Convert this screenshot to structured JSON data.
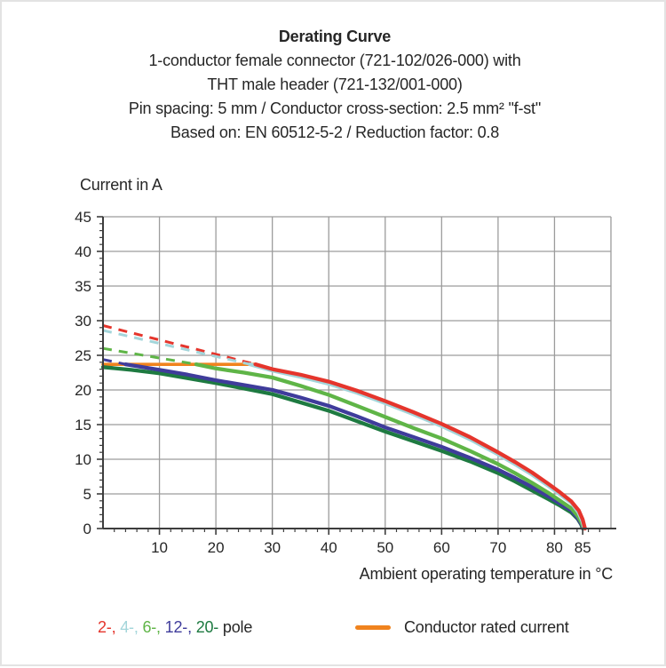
{
  "header": {
    "title": "Derating Curve",
    "subtitle_lines": [
      "1-conductor female connector (721-102/026-000) with",
      "THT male header (721-132/001-000)",
      "Pin spacing: 5 mm / Conductor cross-section: 2.5 mm² \"f-st\"",
      "Based on: EN 60512-5-2 / Reduction factor: 0.8"
    ]
  },
  "chart_data": {
    "type": "line",
    "title": "Derating Curve",
    "xlabel": "Ambient operating temperature in °C",
    "ylabel": "Current in A",
    "xlim": [
      0,
      90
    ],
    "ylim": [
      0,
      45
    ],
    "grid": true,
    "colors": {
      "grid": "#9c9c9c",
      "axis": "#3d3d3d",
      "text": "#262626"
    },
    "axes": {
      "x": {
        "major_ticks": [
          10,
          20,
          30,
          40,
          50,
          60,
          70,
          80,
          85
        ],
        "gridlines": [
          10,
          20,
          30,
          40,
          50,
          60,
          70,
          80,
          90
        ],
        "minor_step": 2
      },
      "y": {
        "major_ticks": [
          0,
          5,
          10,
          15,
          20,
          25,
          30,
          35,
          40,
          45
        ],
        "gridlines": [
          5,
          10,
          15,
          20,
          25,
          30,
          35,
          40,
          45
        ],
        "minor_step": 1
      }
    },
    "rated_current": {
      "name": "Conductor rated current",
      "color": "#f0831e",
      "value": 23.7,
      "t_range": [
        0,
        27
      ]
    },
    "series": [
      {
        "name": "2-pole",
        "color": "#e5352c",
        "dashed": [
          [
            0,
            29.3
          ],
          [
            27,
            23.7
          ]
        ],
        "solid": [
          [
            27,
            23.7
          ],
          [
            30,
            23.0
          ],
          [
            35,
            22.2
          ],
          [
            40,
            21.2
          ],
          [
            45,
            19.9
          ],
          [
            50,
            18.4
          ],
          [
            55,
            16.8
          ],
          [
            60,
            15.1
          ],
          [
            65,
            13.2
          ],
          [
            70,
            11.0
          ],
          [
            73,
            9.6
          ],
          [
            76,
            8.1
          ],
          [
            79,
            6.4
          ],
          [
            81,
            5.2
          ],
          [
            83,
            3.9
          ],
          [
            84.3,
            2.6
          ],
          [
            85,
            1.3
          ],
          [
            85.4,
            0
          ]
        ]
      },
      {
        "name": "4-pole",
        "color": "#a3d5da",
        "dashed": [
          [
            0,
            28.6
          ],
          [
            26,
            23.7
          ]
        ],
        "solid": [
          [
            26,
            23.7
          ],
          [
            30,
            22.8
          ],
          [
            35,
            21.9
          ],
          [
            40,
            20.9
          ],
          [
            45,
            19.6
          ],
          [
            50,
            18.1
          ],
          [
            55,
            16.5
          ],
          [
            60,
            14.8
          ],
          [
            65,
            12.9
          ],
          [
            70,
            10.7
          ],
          [
            73,
            9.3
          ],
          [
            76,
            7.8
          ],
          [
            79,
            6.1
          ],
          [
            81,
            4.9
          ],
          [
            83,
            3.7
          ],
          [
            84.2,
            2.4
          ],
          [
            84.9,
            1.1
          ],
          [
            85.3,
            0
          ]
        ]
      },
      {
        "name": "6-pole",
        "color": "#5fb547",
        "dashed": [
          [
            0,
            26.0
          ],
          [
            16.5,
            23.7
          ]
        ],
        "solid": [
          [
            16.5,
            23.7
          ],
          [
            20,
            23.1
          ],
          [
            25,
            22.5
          ],
          [
            30,
            21.8
          ],
          [
            35,
            20.6
          ],
          [
            40,
            19.3
          ],
          [
            45,
            17.7
          ],
          [
            50,
            16.1
          ],
          [
            55,
            14.5
          ],
          [
            60,
            13.0
          ],
          [
            65,
            11.2
          ],
          [
            70,
            9.3
          ],
          [
            73,
            8.0
          ],
          [
            76,
            6.6
          ],
          [
            79,
            5.1
          ],
          [
            81,
            4.0
          ],
          [
            83,
            2.9
          ],
          [
            84.2,
            1.7
          ],
          [
            84.8,
            0.8
          ],
          [
            85.2,
            0
          ]
        ]
      },
      {
        "name": "12-pole",
        "color": "#3f3c9b",
        "dashed": [
          [
            0,
            24.4
          ],
          [
            4,
            23.7
          ]
        ],
        "solid": [
          [
            4,
            23.7
          ],
          [
            10,
            22.9
          ],
          [
            15,
            22.2
          ],
          [
            20,
            21.4
          ],
          [
            25,
            20.7
          ],
          [
            30,
            20.0
          ],
          [
            35,
            18.9
          ],
          [
            40,
            17.7
          ],
          [
            45,
            16.2
          ],
          [
            50,
            14.6
          ],
          [
            55,
            13.2
          ],
          [
            60,
            11.8
          ],
          [
            65,
            10.2
          ],
          [
            70,
            8.5
          ],
          [
            73,
            7.3
          ],
          [
            76,
            6.0
          ],
          [
            79,
            4.6
          ],
          [
            81,
            3.6
          ],
          [
            83,
            2.6
          ],
          [
            84.1,
            1.5
          ],
          [
            84.7,
            0.7
          ],
          [
            85.1,
            0
          ]
        ]
      },
      {
        "name": "20-pole",
        "color": "#1e7a41",
        "dashed": null,
        "solid": [
          [
            0,
            23.3
          ],
          [
            5,
            22.9
          ],
          [
            10,
            22.4
          ],
          [
            15,
            21.7
          ],
          [
            20,
            21.0
          ],
          [
            25,
            20.2
          ],
          [
            30,
            19.4
          ],
          [
            35,
            18.2
          ],
          [
            40,
            17.0
          ],
          [
            45,
            15.5
          ],
          [
            50,
            14.0
          ],
          [
            55,
            12.6
          ],
          [
            60,
            11.2
          ],
          [
            65,
            9.7
          ],
          [
            70,
            8.0
          ],
          [
            73,
            6.8
          ],
          [
            76,
            5.5
          ],
          [
            79,
            4.2
          ],
          [
            81,
            3.3
          ],
          [
            83,
            2.3
          ],
          [
            84.1,
            1.4
          ],
          [
            84.7,
            0.6
          ],
          [
            85,
            0
          ]
        ]
      }
    ]
  },
  "legend": {
    "pole_items": [
      {
        "label": "2-,",
        "color": "#e5352c"
      },
      {
        "label": "4-,",
        "color": "#a3d5da"
      },
      {
        "label": "6-,",
        "color": "#5fb547"
      },
      {
        "label": "12-,",
        "color": "#3f3c9b"
      },
      {
        "label": "20-",
        "color": "#1e7a41"
      }
    ],
    "pole_suffix": "pole",
    "rated_label": "Conductor rated current",
    "rated_color": "#f0831e"
  }
}
